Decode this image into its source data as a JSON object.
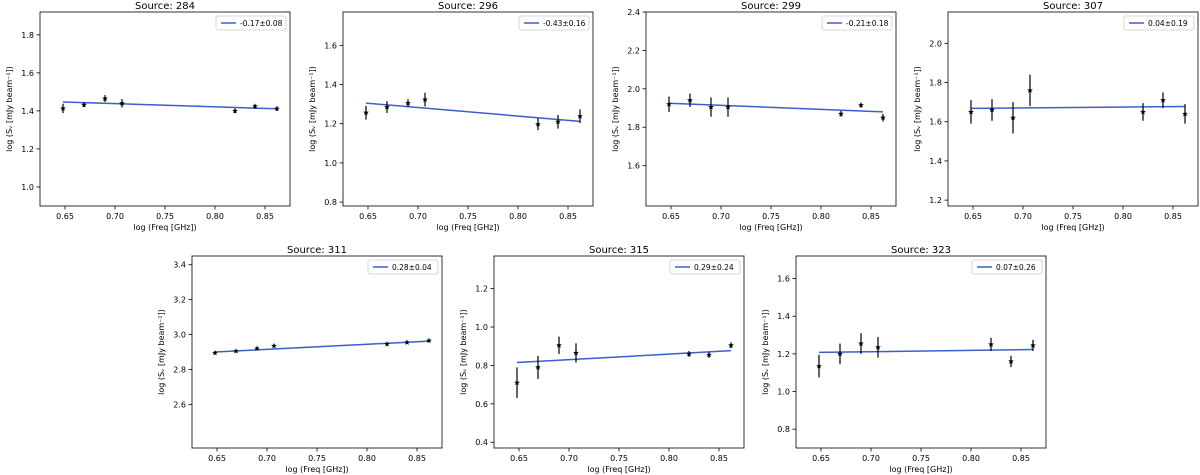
{
  "figure": {
    "shared_xlabel": "log (Freq [GHz])",
    "shared_ylabel": "log (S$_\\nu$ [mJy beam$^{-1}$])"
  },
  "colors": {
    "fit_line": "#3a5fcd",
    "points": "#000000",
    "axes": "#000000",
    "legend_border": "#cccccc"
  },
  "chart_data": [
    {
      "type": "scatter",
      "title": "Source: 284",
      "xlabel": "log (Freq [GHz])",
      "ylabel": "log (Sᵥ [mJy beam⁻¹])",
      "xlim": [
        0.625,
        0.875
      ],
      "ylim": [
        0.9,
        1.92
      ],
      "xticks": [
        0.65,
        0.7,
        0.75,
        0.8,
        0.85
      ],
      "yticks": [
        1.0,
        1.2,
        1.4,
        1.6,
        1.8
      ],
      "points": [
        {
          "x": 0.648,
          "y": 1.413,
          "err": 0.025
        },
        {
          "x": 0.669,
          "y": 1.432,
          "err": 0.012
        },
        {
          "x": 0.69,
          "y": 1.465,
          "err": 0.018
        },
        {
          "x": 0.707,
          "y": 1.44,
          "err": 0.022
        },
        {
          "x": 0.82,
          "y": 1.4,
          "err": 0.012
        },
        {
          "x": 0.84,
          "y": 1.424,
          "err": 0.012
        },
        {
          "x": 0.862,
          "y": 1.412,
          "err": 0.012
        }
      ],
      "fit": {
        "x": [
          0.648,
          0.862
        ],
        "y": [
          1.447,
          1.411
        ]
      },
      "legend": "-0.17±0.08",
      "legend_loc": "top-right"
    },
    {
      "type": "scatter",
      "title": "Source: 296",
      "xlabel": "log (Freq [GHz])",
      "ylabel": "log (Sᵥ [mJy beam⁻¹])",
      "xlim": [
        0.625,
        0.875
      ],
      "ylim": [
        0.78,
        1.77
      ],
      "xticks": [
        0.65,
        0.7,
        0.75,
        0.8,
        0.85
      ],
      "yticks": [
        0.8,
        1.0,
        1.2,
        1.4,
        1.6
      ],
      "points": [
        {
          "x": 0.648,
          "y": 1.256,
          "err": 0.035
        },
        {
          "x": 0.669,
          "y": 1.285,
          "err": 0.03
        },
        {
          "x": 0.69,
          "y": 1.305,
          "err": 0.02
        },
        {
          "x": 0.707,
          "y": 1.323,
          "err": 0.035
        },
        {
          "x": 0.82,
          "y": 1.197,
          "err": 0.03
        },
        {
          "x": 0.84,
          "y": 1.21,
          "err": 0.035
        },
        {
          "x": 0.862,
          "y": 1.238,
          "err": 0.035
        }
      ],
      "fit": {
        "x": [
          0.648,
          0.862
        ],
        "y": [
          1.305,
          1.212
        ]
      },
      "legend": "-0.43±0.16",
      "legend_loc": "top-right"
    },
    {
      "type": "scatter",
      "title": "Source: 299",
      "xlabel": "log (Freq [GHz])",
      "ylabel": "log (Sᵥ [mJy beam⁻¹])",
      "xlim": [
        0.625,
        0.875
      ],
      "ylim": [
        1.39,
        2.4
      ],
      "xticks": [
        0.65,
        0.7,
        0.75,
        0.8,
        0.85
      ],
      "yticks": [
        1.6,
        1.8,
        2.0,
        2.2,
        2.4
      ],
      "points": [
        {
          "x": 0.648,
          "y": 1.92,
          "err": 0.04
        },
        {
          "x": 0.669,
          "y": 1.94,
          "err": 0.035
        },
        {
          "x": 0.69,
          "y": 1.905,
          "err": 0.05
        },
        {
          "x": 0.707,
          "y": 1.905,
          "err": 0.05
        },
        {
          "x": 0.82,
          "y": 1.87,
          "err": 0.015
        },
        {
          "x": 0.84,
          "y": 1.915,
          "err": 0.012
        },
        {
          "x": 0.862,
          "y": 1.85,
          "err": 0.02
        }
      ],
      "fit": {
        "x": [
          0.648,
          0.862
        ],
        "y": [
          1.925,
          1.88
        ]
      },
      "legend": "-0.21±0.18",
      "legend_loc": "top-right"
    },
    {
      "type": "scatter",
      "title": "Source: 307",
      "xlabel": "log (Freq [GHz])",
      "ylabel": "log (Sᵥ [mJy beam⁻¹])",
      "xlim": [
        0.625,
        0.875
      ],
      "ylim": [
        1.17,
        2.16
      ],
      "xticks": [
        0.65,
        0.7,
        0.75,
        0.8,
        0.85
      ],
      "yticks": [
        1.2,
        1.4,
        1.6,
        1.8,
        2.0
      ],
      "points": [
        {
          "x": 0.648,
          "y": 1.65,
          "err": 0.06
        },
        {
          "x": 0.669,
          "y": 1.66,
          "err": 0.055
        },
        {
          "x": 0.69,
          "y": 1.62,
          "err": 0.08
        },
        {
          "x": 0.707,
          "y": 1.76,
          "err": 0.08
        },
        {
          "x": 0.82,
          "y": 1.65,
          "err": 0.045
        },
        {
          "x": 0.84,
          "y": 1.71,
          "err": 0.04
        },
        {
          "x": 0.862,
          "y": 1.64,
          "err": 0.05
        }
      ],
      "fit": {
        "x": [
          0.648,
          0.862
        ],
        "y": [
          1.668,
          1.678
        ]
      },
      "legend": "0.04±0.19",
      "legend_loc": "top-right"
    },
    {
      "type": "scatter",
      "title": "Source: 311",
      "xlabel": "log (Freq [GHz])",
      "ylabel": "log (Sᵥ [mJy beam⁻¹])",
      "xlim": [
        0.625,
        0.875
      ],
      "ylim": [
        2.35,
        3.45
      ],
      "xticks": [
        0.65,
        0.7,
        0.75,
        0.8,
        0.85
      ],
      "yticks": [
        2.6,
        2.8,
        3.0,
        3.2,
        3.4
      ],
      "points": [
        {
          "x": 0.648,
          "y": 2.895,
          "err": 0.01
        },
        {
          "x": 0.669,
          "y": 2.905,
          "err": 0.008
        },
        {
          "x": 0.69,
          "y": 2.92,
          "err": 0.008
        },
        {
          "x": 0.707,
          "y": 2.935,
          "err": 0.008
        },
        {
          "x": 0.82,
          "y": 2.945,
          "err": 0.008
        },
        {
          "x": 0.84,
          "y": 2.955,
          "err": 0.008
        },
        {
          "x": 0.862,
          "y": 2.965,
          "err": 0.008
        }
      ],
      "fit": {
        "x": [
          0.648,
          0.862
        ],
        "y": [
          2.9,
          2.962
        ]
      },
      "legend": "0.28±0.04",
      "legend_loc": "top-right"
    },
    {
      "type": "scatter",
      "title": "Source: 315",
      "xlabel": "log (Freq [GHz])",
      "ylabel": "log (Sᵥ [mJy beam⁻¹])",
      "xlim": [
        0.625,
        0.875
      ],
      "ylim": [
        0.37,
        1.37
      ],
      "xticks": [
        0.65,
        0.7,
        0.75,
        0.8,
        0.85
      ],
      "yticks": [
        0.4,
        0.6,
        0.8,
        1.0,
        1.2
      ],
      "points": [
        {
          "x": 0.648,
          "y": 0.71,
          "err": 0.08
        },
        {
          "x": 0.669,
          "y": 0.79,
          "err": 0.06
        },
        {
          "x": 0.69,
          "y": 0.905,
          "err": 0.045
        },
        {
          "x": 0.707,
          "y": 0.865,
          "err": 0.05
        },
        {
          "x": 0.82,
          "y": 0.86,
          "err": 0.015
        },
        {
          "x": 0.84,
          "y": 0.855,
          "err": 0.015
        },
        {
          "x": 0.862,
          "y": 0.905,
          "err": 0.015
        }
      ],
      "fit": {
        "x": [
          0.648,
          0.862
        ],
        "y": [
          0.815,
          0.877
        ]
      },
      "legend": "0.29±0.24",
      "legend_loc": "top-right"
    },
    {
      "type": "scatter",
      "title": "Source: 323",
      "xlabel": "log (Freq [GHz])",
      "ylabel": "log (Sᵥ [mJy beam⁻¹])",
      "xlim": [
        0.625,
        0.875
      ],
      "ylim": [
        0.7,
        1.72
      ],
      "xticks": [
        0.65,
        0.7,
        0.75,
        0.8,
        0.85
      ],
      "yticks": [
        0.8,
        1.0,
        1.2,
        1.4,
        1.6
      ],
      "points": [
        {
          "x": 0.648,
          "y": 1.135,
          "err": 0.06
        },
        {
          "x": 0.669,
          "y": 1.2,
          "err": 0.055
        },
        {
          "x": 0.69,
          "y": 1.255,
          "err": 0.055
        },
        {
          "x": 0.707,
          "y": 1.235,
          "err": 0.055
        },
        {
          "x": 0.82,
          "y": 1.25,
          "err": 0.035
        },
        {
          "x": 0.84,
          "y": 1.16,
          "err": 0.03
        },
        {
          "x": 0.862,
          "y": 1.245,
          "err": 0.03
        }
      ],
      "fit": {
        "x": [
          0.648,
          0.862
        ],
        "y": [
          1.208,
          1.223
        ]
      },
      "legend": "0.07±0.26",
      "legend_loc": "top-right"
    }
  ]
}
